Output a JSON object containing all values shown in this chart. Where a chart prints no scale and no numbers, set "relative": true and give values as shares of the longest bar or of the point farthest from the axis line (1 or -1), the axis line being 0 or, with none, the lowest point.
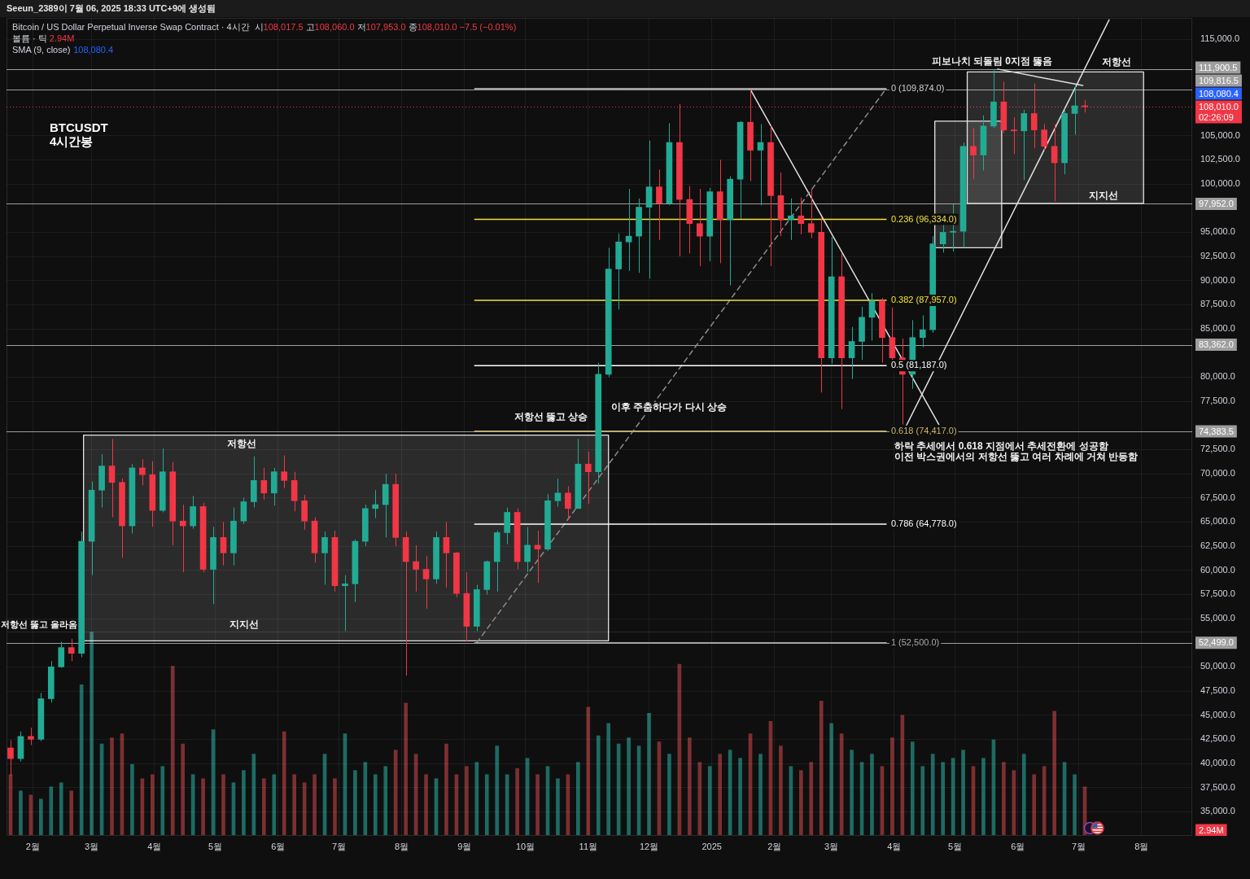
{
  "chart_data": [
    {
      "type": "candlestick",
      "title": "BTCUSDT\n4시간봉",
      "subtitle": "Bitcoin / US Dollar Perpetual Inverse Swap Contract · 4시간",
      "x": [
        "2024-01-21",
        "2024-01-26",
        "2024-01-31",
        "2024-02-05",
        "2024-02-10",
        "2024-02-15",
        "2024-02-20",
        "2024-02-25",
        "2024-03-01",
        "2024-03-06",
        "2024-03-11",
        "2024-03-16",
        "2024-03-21",
        "2024-03-26",
        "2024-03-31",
        "2024-04-05",
        "2024-04-10",
        "2024-04-15",
        "2024-04-20",
        "2024-04-25",
        "2024-04-30",
        "2024-05-05",
        "2024-05-10",
        "2024-05-15",
        "2024-05-20",
        "2024-05-25",
        "2024-05-30",
        "2024-06-04",
        "2024-06-09",
        "2024-06-14",
        "2024-06-19",
        "2024-06-24",
        "2024-06-29",
        "2024-07-04",
        "2024-07-09",
        "2024-07-14",
        "2024-07-19",
        "2024-07-24",
        "2024-07-29",
        "2024-08-03",
        "2024-08-08",
        "2024-08-13",
        "2024-08-18",
        "2024-08-23",
        "2024-08-28",
        "2024-09-02",
        "2024-09-07",
        "2024-09-12",
        "2024-09-17",
        "2024-09-22",
        "2024-09-27",
        "2024-10-02",
        "2024-10-07",
        "2024-10-12",
        "2024-10-17",
        "2024-10-22",
        "2024-10-27",
        "2024-11-01",
        "2024-11-06",
        "2024-11-11",
        "2024-11-16",
        "2024-11-21",
        "2024-11-26",
        "2024-12-01",
        "2024-12-06",
        "2024-12-11",
        "2024-12-16",
        "2024-12-21",
        "2024-12-26",
        "2024-12-31",
        "2025-01-05",
        "2025-01-10",
        "2025-01-15",
        "2025-01-20",
        "2025-01-25",
        "2025-01-30",
        "2025-02-04",
        "2025-02-09",
        "2025-02-14",
        "2025-02-19",
        "2025-02-24",
        "2025-03-01",
        "2025-03-06",
        "2025-03-11",
        "2025-03-16",
        "2025-03-21",
        "2025-03-26",
        "2025-03-31",
        "2025-04-05",
        "2025-04-10",
        "2025-04-15",
        "2025-04-20",
        "2025-04-25",
        "2025-04-30",
        "2025-05-05",
        "2025-05-10",
        "2025-05-15",
        "2025-05-20",
        "2025-05-25",
        "2025-05-30",
        "2025-06-04",
        "2025-06-09",
        "2025-06-14",
        "2025-06-19",
        "2025-06-24",
        "2025-06-29",
        "2025-07-04"
      ],
      "ohlc": [
        [
          41600,
          42400,
          38700,
          40500
        ],
        [
          40500,
          43300,
          40200,
          42800
        ],
        [
          42800,
          43700,
          41900,
          42500
        ],
        [
          42500,
          47300,
          42300,
          46700
        ],
        [
          46700,
          50600,
          46300,
          50000
        ],
        [
          50000,
          52600,
          49900,
          52000
        ],
        [
          52000,
          52900,
          50600,
          51400
        ],
        [
          51400,
          64000,
          51000,
          63000
        ],
        [
          63000,
          69200,
          59500,
          68300
        ],
        [
          68300,
          72000,
          66500,
          70800
        ],
        [
          70800,
          73600,
          65500,
          69100
        ],
        [
          69100,
          69500,
          61300,
          64600
        ],
        [
          64600,
          71000,
          63800,
          70600
        ],
        [
          70600,
          71500,
          68800,
          69900
        ],
        [
          69900,
          71300,
          64500,
          66200
        ],
        [
          66200,
          72600,
          66000,
          70200
        ],
        [
          70200,
          71200,
          62600,
          65100
        ],
        [
          65100,
          66800,
          59800,
          64600
        ],
        [
          64600,
          67700,
          64300,
          66600
        ],
        [
          66600,
          67000,
          59800,
          60100
        ],
        [
          60100,
          64500,
          56500,
          63400
        ],
        [
          63400,
          65000,
          60500,
          61800
        ],
        [
          61800,
          66500,
          60500,
          65100
        ],
        [
          65100,
          67500,
          64800,
          67100
        ],
        [
          67100,
          71800,
          66500,
          69300
        ],
        [
          69300,
          70600,
          67300,
          68000
        ],
        [
          68000,
          70600,
          66700,
          70200
        ],
        [
          70200,
          71900,
          68500,
          69300
        ],
        [
          69300,
          70200,
          66100,
          67200
        ],
        [
          67200,
          67800,
          64200,
          65100
        ],
        [
          65100,
          65500,
          60800,
          61800
        ],
        [
          61800,
          64000,
          58500,
          63400
        ],
        [
          63400,
          64100,
          57800,
          58400
        ],
        [
          58400,
          59500,
          53700,
          58600
        ],
        [
          58600,
          63200,
          56700,
          63000
        ],
        [
          63000,
          66800,
          62500,
          66400
        ],
        [
          66400,
          68300,
          65400,
          66800
        ],
        [
          66800,
          70000,
          63400,
          68900
        ],
        [
          68900,
          70000,
          62500,
          63400
        ],
        [
          63400,
          64000,
          49100,
          60900
        ],
        [
          60900,
          62600,
          57800,
          60100
        ],
        [
          60100,
          61500,
          56000,
          59100
        ],
        [
          59100,
          64000,
          58600,
          63400
        ],
        [
          63400,
          65000,
          58200,
          61800
        ],
        [
          61800,
          61900,
          57200,
          57600
        ],
        [
          57600,
          59800,
          52600,
          54200
        ],
        [
          54200,
          58500,
          53700,
          58000
        ],
        [
          58000,
          61000,
          57500,
          60900
        ],
        [
          60900,
          64100,
          57800,
          63900
        ],
        [
          63900,
          66500,
          62700,
          66000
        ],
        [
          66000,
          66400,
          60100,
          60900
        ],
        [
          60900,
          64500,
          59800,
          62600
        ],
        [
          62600,
          64100,
          58700,
          62200
        ],
        [
          62200,
          67900,
          62000,
          67200
        ],
        [
          67200,
          69500,
          66600,
          68000
        ],
        [
          68000,
          68700,
          65200,
          66400
        ],
        [
          66400,
          73600,
          66400,
          71000
        ],
        [
          71000,
          72300,
          66900,
          70200
        ],
        [
          70200,
          81500,
          69000,
          80300
        ],
        [
          80300,
          93400,
          80000,
          91200
        ],
        [
          91200,
          94900,
          87000,
          94000
        ],
        [
          94000,
          99500,
          91000,
          94600
        ],
        [
          94600,
          98500,
          90800,
          97600
        ],
        [
          97600,
          104500,
          90200,
          99700
        ],
        [
          99700,
          101500,
          94200,
          98000
        ],
        [
          98000,
          106300,
          97800,
          104300
        ],
        [
          104300,
          108300,
          92500,
          98400
        ],
        [
          98400,
          99800,
          92800,
          95900
        ],
        [
          95900,
          99500,
          91500,
          94600
        ],
        [
          94600,
          99600,
          92000,
          99200
        ],
        [
          99200,
          102500,
          91800,
          96300
        ],
        [
          96300,
          100800,
          89500,
          100500
        ],
        [
          100500,
          106500,
          96400,
          106400
        ],
        [
          106400,
          109800,
          100300,
          103500
        ],
        [
          103500,
          106200,
          97800,
          104300
        ],
        [
          104300,
          106000,
          91500,
          98800
        ],
        [
          98800,
          101200,
          94600,
          96300
        ],
        [
          96300,
          98500,
          94200,
          96700
        ],
        [
          96700,
          98600,
          94800,
          95900
        ],
        [
          95900,
          99500,
          94400,
          95000
        ],
        [
          95000,
          96500,
          78400,
          82000
        ],
        [
          82000,
          94500,
          81400,
          90400
        ],
        [
          90400,
          92800,
          76700,
          82000
        ],
        [
          82000,
          85200,
          79800,
          83700
        ],
        [
          83700,
          87300,
          81800,
          86200
        ],
        [
          86200,
          88700,
          83800,
          87900
        ],
        [
          87900,
          88200,
          81500,
          84100
        ],
        [
          84100,
          87200,
          81800,
          82000
        ],
        [
          82000,
          84000,
          75100,
          80300
        ],
        [
          80300,
          85900,
          78800,
          84100
        ],
        [
          84100,
          86400,
          83100,
          84900
        ],
        [
          84900,
          94600,
          84600,
          93800
        ],
        [
          93800,
          95800,
          92900,
          95000
        ],
        [
          95000,
          97900,
          93000,
          95100
        ],
        [
          95100,
          104300,
          93400,
          103900
        ],
        [
          103900,
          105800,
          100500,
          103000
        ],
        [
          103000,
          107100,
          101400,
          106000
        ],
        [
          106000,
          111900,
          105800,
          108500
        ],
        [
          108500,
          110600,
          105300,
          105600
        ],
        [
          105600,
          106900,
          103100,
          105500
        ],
        [
          105500,
          107700,
          100400,
          107300
        ],
        [
          107300,
          110400,
          103700,
          105600
        ],
        [
          105600,
          106200,
          103400,
          103900
        ],
        [
          103900,
          106200,
          98200,
          102200
        ],
        [
          102200,
          107800,
          101000,
          107300
        ],
        [
          107300,
          110200,
          105100,
          108100
        ],
        [
          108100,
          108700,
          107400,
          108010
        ]
      ],
      "series": [
        {
          "type": "area",
          "color": "#e6e6e6",
          "x": [
            "2024-02-26",
            "2024-11-11",
            "2024-11-11",
            "2024-02-26",
            "2024-02-26"
          ],
          "values": [
            74000,
            74000,
            52700,
            52700,
            74000
          ]
        },
        {
          "type": "area",
          "color": "#e6e6e6",
          "x": [
            "2025-04-21",
            "2025-05-24",
            "2025-05-24",
            "2025-04-21",
            "2025-04-21"
          ],
          "values": [
            106500,
            106500,
            93400,
            93400,
            106500
          ]
        },
        {
          "type": "area",
          "color": "#e6e6e6",
          "x": [
            "2025-05-07",
            "2025-08-02",
            "2025-08-02",
            "2025-05-07",
            "2025-05-07"
          ],
          "values": [
            111600,
            111600,
            98000,
            98000,
            111600
          ]
        },
        {
          "type": "line",
          "name": "0 (109,874.0)",
          "color": "#cfcfcf",
          "x": [
            "2024-09-06",
            "2025-03-28"
          ],
          "values": [
            109874,
            109874
          ]
        },
        {
          "type": "line",
          "name": "0.236 (96,334.0)",
          "color": "#f2e33a",
          "x": [
            "2024-09-06",
            "2025-03-28"
          ],
          "values": [
            96334,
            96334
          ]
        },
        {
          "type": "line",
          "name": "0.382 (87,957.0)",
          "color": "#f2e33a",
          "x": [
            "2024-09-06",
            "2025-03-28"
          ],
          "values": [
            87957,
            87957
          ]
        },
        {
          "type": "line",
          "name": "0.5 (81,187.0)",
          "color": "#ffffff",
          "x": [
            "2024-09-06",
            "2025-03-28"
          ],
          "values": [
            81187,
            81187
          ]
        },
        {
          "type": "line",
          "name": "0.618 (74,417.0)",
          "color": "#c9b46a",
          "x": [
            "2024-09-06",
            "2025-03-28"
          ],
          "values": [
            74417,
            74417
          ]
        },
        {
          "type": "line",
          "name": "0.786 (64,778.0)",
          "color": "#ffffff",
          "x": [
            "2024-09-06",
            "2025-03-28"
          ],
          "values": [
            64778,
            64778
          ]
        },
        {
          "type": "line",
          "name": "1 (52,500.0)",
          "color": "#a8a8a8",
          "x": [
            "2024-09-06",
            "2025-03-28"
          ],
          "values": [
            52500,
            52500
          ]
        },
        {
          "type": "line",
          "color": "#8c8c8c",
          "line_style": "dashed",
          "x": [
            "2024-09-07",
            "2025-03-28"
          ],
          "values": [
            52500,
            109874
          ]
        },
        {
          "type": "line",
          "color": "#e0e0e0",
          "x": [
            "2025-01-20",
            "2025-04-23"
          ],
          "values": [
            109800,
            75100
          ]
        },
        {
          "type": "line",
          "color": "#e0e0e0",
          "x": [
            "2025-04-07",
            "2025-07-16"
          ],
          "values": [
            75000,
            117000
          ]
        },
        {
          "type": "line",
          "color": "#e0e0e0",
          "x": [
            "2025-05-22",
            "2025-07-03"
          ],
          "values": [
            111900,
            110200
          ]
        }
      ],
      "xlim": [
        "2024-01-19",
        "2025-08-26"
      ],
      "xticks": [
        {
          "value": "2024-02-01",
          "label": "2월"
        },
        {
          "value": "2024-03-01",
          "label": "3월"
        },
        {
          "value": "2024-04-01",
          "label": "4월"
        },
        {
          "value": "2024-05-01",
          "label": "5월"
        },
        {
          "value": "2024-06-01",
          "label": "6월"
        },
        {
          "value": "2024-07-01",
          "label": "7월"
        },
        {
          "value": "2024-08-01",
          "label": "8월"
        },
        {
          "value": "2024-09-01",
          "label": "9월"
        },
        {
          "value": "2024-10-01",
          "label": "10월"
        },
        {
          "value": "2024-11-01",
          "label": "11월"
        },
        {
          "value": "2024-12-01",
          "label": "12월"
        },
        {
          "value": "2025-01-01",
          "label": "2025"
        },
        {
          "value": "2025-02-01",
          "label": "2월"
        },
        {
          "value": "2025-03-01",
          "label": "3월"
        },
        {
          "value": "2025-04-01",
          "label": "4월"
        },
        {
          "value": "2025-05-01",
          "label": "5월"
        },
        {
          "value": "2025-06-01",
          "label": "6월"
        },
        {
          "value": "2025-07-01",
          "label": "7월"
        },
        {
          "value": "2025-08-01",
          "label": "8월"
        }
      ],
      "ylim": [
        32500,
        117200
      ],
      "yticks": [
        {
          "value": 115000,
          "label": "115,000.0"
        },
        {
          "value": 105000,
          "label": "105,000.0"
        },
        {
          "value": 102500,
          "label": "102,500.0"
        },
        {
          "value": 100000,
          "label": "100,000.0"
        },
        {
          "value": 95000,
          "label": "95,000.0"
        },
        {
          "value": 92500,
          "label": "92,500.0"
        },
        {
          "value": 90000,
          "label": "90,000.0"
        },
        {
          "value": 87500,
          "label": "87,500.0"
        },
        {
          "value": 85000,
          "label": "85,000.0"
        },
        {
          "value": 80000,
          "label": "80,000.0"
        },
        {
          "value": 77500,
          "label": "77,500.0"
        },
        {
          "value": 72500,
          "label": "72,500.0"
        },
        {
          "value": 70000,
          "label": "70,000.0"
        },
        {
          "value": 67500,
          "label": "67,500.0"
        },
        {
          "value": 65000,
          "label": "65,000.0"
        },
        {
          "value": 62500,
          "label": "62,500.0"
        },
        {
          "value": 60000,
          "label": "60,000.0"
        },
        {
          "value": 57500,
          "label": "57,500.0"
        },
        {
          "value": 55000,
          "label": "55,000.0"
        },
        {
          "value": 50000,
          "label": "50,000.0"
        },
        {
          "value": 47500,
          "label": "47,500.0"
        },
        {
          "value": 45000,
          "label": "45,000.0"
        },
        {
          "value": 42500,
          "label": "42,500.0"
        },
        {
          "value": 40000,
          "label": "40,000.0"
        },
        {
          "value": 37500,
          "label": "37,500.0"
        },
        {
          "value": 35000,
          "label": "35,000.0"
        }
      ],
      "grid": true,
      "ref_lines": [
        {
          "axis": "y",
          "value": 111900.5,
          "label": "111,900.5",
          "color": "#9e9e9e"
        },
        {
          "axis": "y",
          "value": 109816.5,
          "label": "109,816.5",
          "color": "#9e9e9e"
        },
        {
          "axis": "y",
          "value": 108010,
          "label": "108,010.0\n02:26:09",
          "color": "#f23645",
          "line_style": "dotted"
        },
        {
          "axis": "y",
          "value": 97952,
          "label": "97,952.0",
          "color": "#9e9e9e"
        },
        {
          "axis": "y",
          "value": 83362,
          "label": "83,362.0",
          "color": "#9e9e9e"
        },
        {
          "axis": "y",
          "value": 74383.5,
          "label": "74,383.5",
          "color": "#9e9e9e"
        },
        {
          "axis": "y",
          "value": 52499,
          "label": "52,499.0",
          "color": "#9e9e9e"
        }
      ],
      "annotations": [
        "Seeun_2389이 7월 06, 2025 18:33 UTC+9에 생성됨",
        "시108,017.5 고108,060.0 저107,953.0 종108,010.0 −7.5 (−0.01%)",
        "볼륨 · 틱 2.94M",
        "SMA (9, close) 108,080.4",
        "108,080.4",
        "저항선",
        "지지선",
        "저항선 뚫고 올라옴",
        "저항선 뚫고 상승",
        "이후 주춤하다가 다시 상승",
        "피보나치 되돌림 0지점 뚫음",
        "저항선",
        "지지선",
        "하락 추세에서 0.618 지점에서 추세전환에 성공함\n이전 박스권에서의 저항선 뚫고 여러 차례에 거쳐 반등함"
      ]
    },
    {
      "type": "bar",
      "relative": true,
      "tick_labels": false,
      "xlim": [
        "2024-01-19",
        "2025-08-26"
      ],
      "x": [
        "2024-01-21",
        "2024-01-26",
        "2024-01-31",
        "2024-02-05",
        "2024-02-10",
        "2024-02-15",
        "2024-02-20",
        "2024-02-25",
        "2024-03-01",
        "2024-03-06",
        "2024-03-11",
        "2024-03-16",
        "2024-03-21",
        "2024-03-26",
        "2024-03-31",
        "2024-04-05",
        "2024-04-10",
        "2024-04-15",
        "2024-04-20",
        "2024-04-25",
        "2024-04-30",
        "2024-05-05",
        "2024-05-10",
        "2024-05-15",
        "2024-05-20",
        "2024-05-25",
        "2024-05-30",
        "2024-06-04",
        "2024-06-09",
        "2024-06-14",
        "2024-06-19",
        "2024-06-24",
        "2024-06-29",
        "2024-07-04",
        "2024-07-09",
        "2024-07-14",
        "2024-07-19",
        "2024-07-24",
        "2024-07-29",
        "2024-08-03",
        "2024-08-08",
        "2024-08-13",
        "2024-08-18",
        "2024-08-23",
        "2024-08-28",
        "2024-09-02",
        "2024-09-07",
        "2024-09-12",
        "2024-09-17",
        "2024-09-22",
        "2024-09-27",
        "2024-10-02",
        "2024-10-07",
        "2024-10-12",
        "2024-10-17",
        "2024-10-22",
        "2024-10-27",
        "2024-11-01",
        "2024-11-06",
        "2024-11-11",
        "2024-11-16",
        "2024-11-21",
        "2024-11-26",
        "2024-12-01",
        "2024-12-06",
        "2024-12-11",
        "2024-12-16",
        "2024-12-21",
        "2024-12-26",
        "2024-12-31",
        "2025-01-05",
        "2025-01-10",
        "2025-01-15",
        "2025-01-20",
        "2025-01-25",
        "2025-01-30",
        "2025-02-04",
        "2025-02-09",
        "2025-02-14",
        "2025-02-19",
        "2025-02-24",
        "2025-03-01",
        "2025-03-06",
        "2025-03-11",
        "2025-03-16",
        "2025-03-21",
        "2025-03-26",
        "2025-03-31",
        "2025-04-05",
        "2025-04-10",
        "2025-04-15",
        "2025-04-20",
        "2025-04-25",
        "2025-04-30",
        "2025-05-05",
        "2025-05-10",
        "2025-05-15",
        "2025-05-20",
        "2025-05-25",
        "2025-05-30",
        "2025-06-04",
        "2025-06-09",
        "2025-06-14",
        "2025-06-19",
        "2025-06-24",
        "2025-06-29",
        "2025-07-04"
      ],
      "values": [
        0.3,
        0.22,
        0.2,
        0.18,
        0.24,
        0.26,
        0.22,
        0.74,
        1,
        0.45,
        0.48,
        0.5,
        0.35,
        0.28,
        0.3,
        0.34,
        0.83,
        0.45,
        0.3,
        0.28,
        0.52,
        0.3,
        0.26,
        0.32,
        0.4,
        0.28,
        0.3,
        0.51,
        0.3,
        0.26,
        0.3,
        0.4,
        0.28,
        0.5,
        0.32,
        0.36,
        0.3,
        0.34,
        0.42,
        0.65,
        0.4,
        0.3,
        0.28,
        0.45,
        0.3,
        0.34,
        0.36,
        0.3,
        0.44,
        0.3,
        0.33,
        0.38,
        0.3,
        0.34,
        0.28,
        0.3,
        0.36,
        0.63,
        0.49,
        0.55,
        0.45,
        0.48,
        0.44,
        0.6,
        0.46,
        0.4,
        0.84,
        0.48,
        0.36,
        0.34,
        0.4,
        0.42,
        0.38,
        0.5,
        0.4,
        0.56,
        0.44,
        0.34,
        0.32,
        0.36,
        0.66,
        0.55,
        0.5,
        0.42,
        0.36,
        0.4,
        0.34,
        0.48,
        0.59,
        0.46,
        0.34,
        0.4,
        0.36,
        0.38,
        0.42,
        0.34,
        0.38,
        0.47,
        0.36,
        0.32,
        0.4,
        0.3,
        0.34,
        0.61,
        0.36,
        0.3,
        0.24
      ],
      "colors": [
        "#7d2f31",
        "#1d6b64",
        "#7d2f31",
        "#1d6b64",
        "#1d6b64",
        "#1d6b64",
        "#7d2f31",
        "#1d6b64",
        "#1d6b64",
        "#1d6b64",
        "#7d2f31",
        "#7d2f31",
        "#1d6b64",
        "#7d2f31",
        "#7d2f31",
        "#1d6b64",
        "#7d2f31",
        "#7d2f31",
        "#1d6b64",
        "#7d2f31",
        "#1d6b64",
        "#7d2f31",
        "#1d6b64",
        "#1d6b64",
        "#1d6b64",
        "#7d2f31",
        "#1d6b64",
        "#7d2f31",
        "#7d2f31",
        "#7d2f31",
        "#7d2f31",
        "#1d6b64",
        "#7d2f31",
        "#1d6b64",
        "#1d6b64",
        "#1d6b64",
        "#1d6b64",
        "#1d6b64",
        "#7d2f31",
        "#7d2f31",
        "#7d2f31",
        "#7d2f31",
        "#1d6b64",
        "#7d2f31",
        "#7d2f31",
        "#7d2f31",
        "#1d6b64",
        "#1d6b64",
        "#1d6b64",
        "#1d6b64",
        "#7d2f31",
        "#1d6b64",
        "#7d2f31",
        "#1d6b64",
        "#1d6b64",
        "#7d2f31",
        "#1d6b64",
        "#7d2f31",
        "#1d6b64",
        "#1d6b64",
        "#1d6b64",
        "#1d6b64",
        "#1d6b64",
        "#1d6b64",
        "#7d2f31",
        "#1d6b64",
        "#7d2f31",
        "#7d2f31",
        "#7d2f31",
        "#1d6b64",
        "#7d2f31",
        "#1d6b64",
        "#1d6b64",
        "#7d2f31",
        "#1d6b64",
        "#7d2f31",
        "#7d2f31",
        "#1d6b64",
        "#7d2f31",
        "#7d2f31",
        "#7d2f31",
        "#1d6b64",
        "#7d2f31",
        "#1d6b64",
        "#1d6b64",
        "#1d6b64",
        "#7d2f31",
        "#7d2f31",
        "#7d2f31",
        "#1d6b64",
        "#1d6b64",
        "#1d6b64",
        "#1d6b64",
        "#1d6b64",
        "#1d6b64",
        "#7d2f31",
        "#1d6b64",
        "#1d6b64",
        "#7d2f31",
        "#7d2f31",
        "#1d6b64",
        "#7d2f31",
        "#7d2f31",
        "#7d2f31",
        "#1d6b64",
        "#1d6b64",
        "#7d2f31"
      ],
      "annotations": [
        "2.94M"
      ]
    }
  ]
}
